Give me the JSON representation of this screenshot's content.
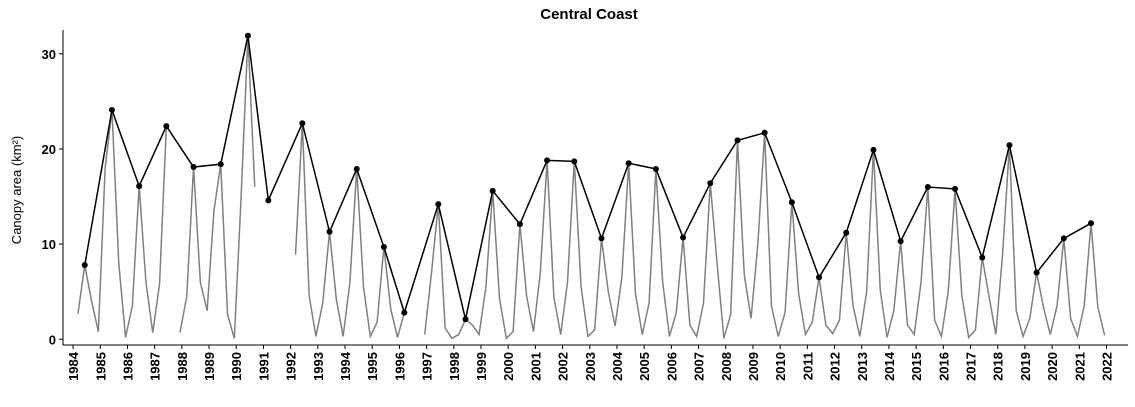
{
  "chart_data": {
    "type": "line",
    "title": "Central Coast",
    "y_label": "Canopy area (km²)",
    "xlim": [
      1983.63,
      2022.79
    ],
    "ylim": [
      -0.6,
      32.5
    ],
    "xticks": [
      1984,
      1985,
      1986,
      1987,
      1988,
      1989,
      1990,
      1991,
      1992,
      1993,
      1994,
      1995,
      1996,
      1997,
      1998,
      1999,
      2000,
      2001,
      2002,
      2003,
      2004,
      2005,
      2006,
      2007,
      2008,
      2009,
      2010,
      2011,
      2012,
      2013,
      2014,
      2015,
      2016,
      2017,
      2018,
      2019,
      2020,
      2021,
      2022
    ],
    "yticks": [
      0,
      10,
      20,
      30
    ],
    "series": [
      {
        "color": "#808080",
        "markers": false,
        "x": [
          1984.18,
          1984.43,
          1984.68,
          1984.93,
          1985.18,
          1985.43,
          1985.68,
          1985.93,
          1986.18,
          1986.43,
          1986.68,
          1986.93,
          1987.18,
          1987.43,
          1987.68,
          1987.93,
          1988.18,
          1988.43,
          1988.68,
          1988.93,
          1989.18,
          1989.43,
          1989.68,
          1989.93,
          1990.18,
          1990.43,
          1990.68,
          1990.93,
          1991.18,
          1991.43,
          1991.68,
          1991.93,
          1992.18,
          1992.43,
          1992.68,
          1992.93,
          1993.18,
          1993.43,
          1993.68,
          1993.93,
          1994.18,
          1994.43,
          1994.68,
          1994.93,
          1995.18,
          1995.43,
          1995.68,
          1995.93,
          1996.18,
          1996.43,
          1996.68,
          1996.93,
          1997.18,
          1997.43,
          1997.68,
          1997.93,
          1998.18,
          1998.43,
          1998.68,
          1998.93,
          1999.18,
          1999.43,
          1999.68,
          1999.93,
          2000.18,
          2000.43,
          2000.68,
          2000.93,
          2001.18,
          2001.43,
          2001.68,
          2001.93,
          2002.18,
          2002.43,
          2002.68,
          2002.93,
          2003.18,
          2003.43,
          2003.68,
          2003.93,
          2004.18,
          2004.43,
          2004.68,
          2004.93,
          2005.18,
          2005.43,
          2005.68,
          2005.93,
          2006.18,
          2006.43,
          2006.68,
          2006.93,
          2007.18,
          2007.43,
          2007.68,
          2007.93,
          2008.18,
          2008.43,
          2008.68,
          2008.93,
          2009.18,
          2009.43,
          2009.68,
          2009.93,
          2010.18,
          2010.43,
          2010.68,
          2010.93,
          2011.18,
          2011.43,
          2011.68,
          2011.93,
          2012.18,
          2012.43,
          2012.68,
          2012.93,
          2013.18,
          2013.43,
          2013.68,
          2013.93,
          2014.18,
          2014.43,
          2014.68,
          2014.93,
          2015.18,
          2015.43,
          2015.68,
          2015.93,
          2016.18,
          2016.43,
          2016.68,
          2016.93,
          2017.18,
          2017.43,
          2017.68,
          2017.93,
          2018.18,
          2018.43,
          2018.68,
          2018.93,
          2019.18,
          2019.43,
          2019.68,
          2019.93,
          2020.18,
          2020.43,
          2020.68,
          2020.93,
          2021.18,
          2021.43,
          2021.68,
          2021.93
        ],
        "values": [
          2.7,
          7.8,
          4,
          0.8,
          18,
          24.1,
          8,
          0.2,
          3.5,
          16.1,
          6,
          0.7,
          5.8,
          22.4,
          null,
          0.7,
          4.5,
          18.1,
          6,
          3,
          13.5,
          18.4,
          2.6,
          0.1,
          15,
          31.9,
          16,
          null,
          null,
          null,
          null,
          null,
          8.9,
          22.7,
          4.6,
          0.3,
          3.8,
          11.3,
          4.2,
          0.3,
          6,
          17.9,
          5.5,
          0.3,
          1.8,
          9.7,
          3.2,
          0.2,
          2.8,
          null,
          null,
          0.5,
          7,
          14.2,
          1.2,
          0.1,
          0.5,
          2.1,
          1.5,
          0.5,
          5.5,
          15.6,
          4.3,
          0.1,
          0.8,
          12.1,
          4.5,
          0.8,
          7,
          18.8,
          4.4,
          0.5,
          6,
          18.7,
          5.5,
          0.3,
          1,
          10.6,
          5,
          1.4,
          6.5,
          18.5,
          4.8,
          0.5,
          3.8,
          17.9,
          6,
          0.3,
          2.8,
          10.7,
          1.5,
          0.3,
          3.8,
          16.4,
          8,
          0.1,
          2.6,
          20.9,
          6.8,
          2.2,
          10,
          21.7,
          3.5,
          0.3,
          2.8,
          14.4,
          4.8,
          0.5,
          1.8,
          6.5,
          1.5,
          0.6,
          2,
          11.2,
          3.5,
          0.3,
          5,
          19.9,
          5.2,
          0.2,
          3,
          10.3,
          1.5,
          0.5,
          6,
          16,
          2,
          0.3,
          5,
          15.8,
          4.6,
          0.2,
          1,
          8.6,
          4.5,
          0.5,
          9,
          20.4,
          3,
          0.3,
          2.2,
          7,
          3.4,
          0.5,
          3.5,
          10.6,
          2.2,
          0.3,
          3.5,
          12.2,
          3.4,
          0.4
        ]
      },
      {
        "color": "#000000",
        "markers": true,
        "x": [
          1984.43,
          1985.43,
          1986.43,
          1987.43,
          1988.43,
          1989.43,
          1990.43,
          1991.18,
          1992.43,
          1993.43,
          1994.43,
          1995.43,
          1996.18,
          1997.43,
          1998.43,
          1999.43,
          2000.43,
          2001.43,
          2002.43,
          2003.43,
          2004.43,
          2005.43,
          2006.43,
          2007.43,
          2008.43,
          2009.43,
          2010.43,
          2011.43,
          2012.43,
          2013.43,
          2014.43,
          2015.43,
          2016.43,
          2017.43,
          2018.43,
          2019.43,
          2020.43,
          2021.43
        ],
        "values": [
          7.8,
          24.1,
          16.1,
          22.4,
          18.1,
          18.4,
          31.9,
          14.6,
          22.7,
          11.3,
          17.9,
          9.7,
          2.8,
          14.2,
          2.1,
          15.6,
          12.1,
          18.8,
          18.7,
          10.6,
          18.5,
          17.9,
          10.7,
          16.4,
          20.9,
          21.7,
          14.4,
          6.5,
          11.2,
          19.9,
          10.3,
          16,
          15.8,
          8.6,
          20.4,
          7,
          10.6,
          12.2
        ]
      }
    ]
  }
}
